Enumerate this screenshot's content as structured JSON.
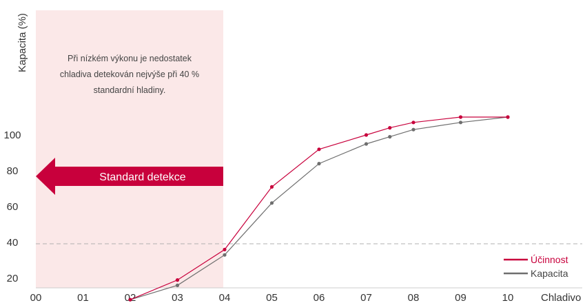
{
  "chart_data": {
    "type": "line",
    "ylabel": "Kapacita (%)",
    "xlabel": "Chladivo",
    "x_ticks": [
      "00",
      "01",
      "02",
      "03",
      "04",
      "05",
      "06",
      "07",
      "08",
      "09",
      "10"
    ],
    "y_ticks": [
      20,
      40,
      60,
      80,
      100
    ],
    "xlim": [
      0,
      10
    ],
    "ylim": [
      8,
      150
    ],
    "grid": false,
    "reference_line_y": 33,
    "highlight_region": {
      "x_range": [
        0,
        4
      ],
      "color": "#fbe8e8",
      "annotation": [
        "Při nízkém výkonu je nedostatek",
        "chladiva detekován nejvýše při 40 %",
        "standardní hladiny."
      ]
    },
    "arrow_label": "Standard detekce",
    "legend_position": "bottom-right",
    "series": [
      {
        "name": "Účinnost",
        "color": "#c8003c",
        "x": [
          2,
          3,
          4,
          5,
          6,
          7,
          7.5,
          8,
          9,
          10
        ],
        "y": [
          8,
          19,
          36,
          71,
          92,
          100,
          104,
          107,
          110,
          110
        ]
      },
      {
        "name": "Kapacita",
        "color": "#6e6e6e",
        "x": [
          2,
          3,
          4,
          5,
          6,
          7,
          7.5,
          8,
          9,
          10
        ],
        "y": [
          8,
          16,
          33,
          62,
          84,
          95,
          99,
          103,
          107,
          110
        ]
      }
    ]
  }
}
